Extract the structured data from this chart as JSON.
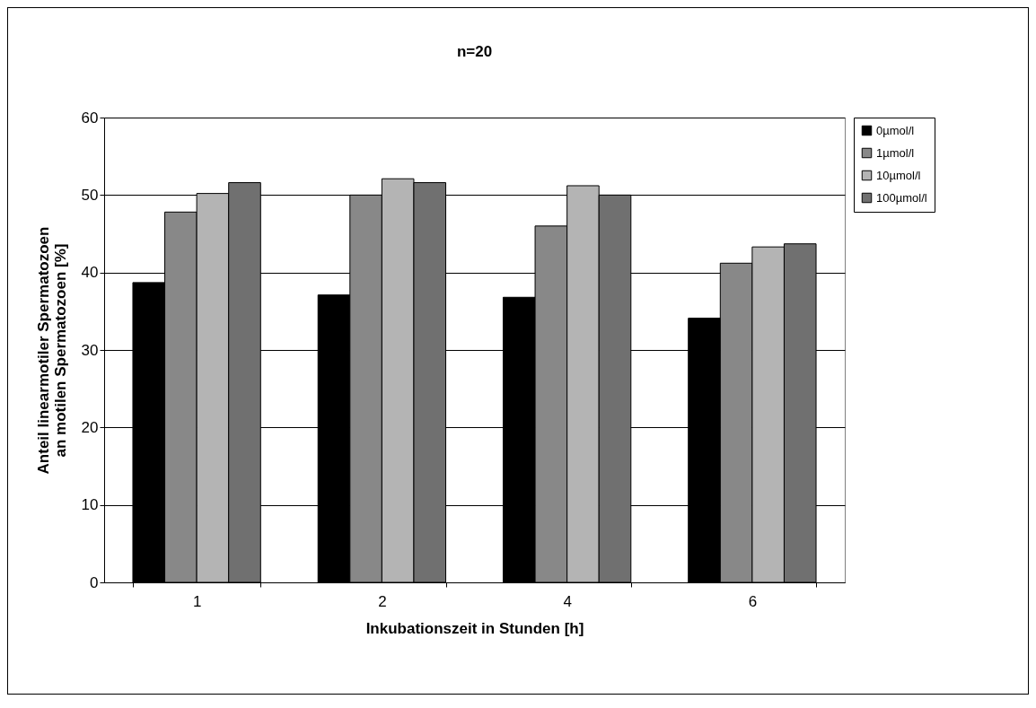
{
  "chart_data": {
    "type": "bar",
    "title": "n=20",
    "xlabel": "Inkubationszeit in Stunden [h]",
    "ylabel": "Anteil linearmotiler Spermatozoen an motilen Spermatozoen [%]",
    "categories": [
      "1",
      "2",
      "4",
      "6"
    ],
    "series": [
      {
        "name": "0µmol/l",
        "color": "#000000",
        "values": [
          38.7,
          37.1,
          36.8,
          34.1
        ]
      },
      {
        "name": "1µmol/l",
        "color": "#888888",
        "values": [
          47.8,
          50.0,
          46.0,
          41.2
        ]
      },
      {
        "name": "10µmol/l",
        "color": "#b4b4b4",
        "values": [
          50.2,
          52.1,
          51.2,
          43.3
        ]
      },
      {
        "name": "100µmol/l",
        "color": "#707070",
        "values": [
          51.6,
          51.6,
          50.0,
          43.7
        ]
      }
    ],
    "ylim": [
      0,
      60
    ],
    "yticks": [
      0,
      10,
      20,
      30,
      40,
      50,
      60
    ],
    "grid": "y",
    "legend": "right"
  }
}
